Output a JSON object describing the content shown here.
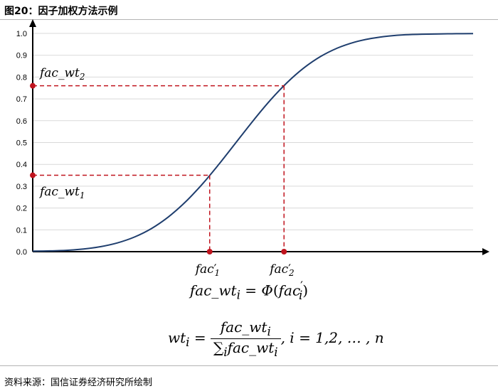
{
  "header": {
    "title": "图20：因子加权方法示例"
  },
  "footer": {
    "source": "资料来源：国信证券经济研究所绘制"
  },
  "colors": {
    "curve": "#1f3e6e",
    "marker": "#c0141e",
    "grid": "#d9d9d9",
    "axis": "#000000"
  },
  "chart_data": {
    "type": "line",
    "title": "",
    "xlabel": "",
    "ylabel": "",
    "ylim": [
      0,
      1.0
    ],
    "yticks": [
      "0.0",
      "0.1",
      "0.2",
      "0.3",
      "0.4",
      "0.5",
      "0.6",
      "0.7",
      "0.8",
      "0.9",
      "1.0"
    ],
    "grid": true,
    "series": [
      {
        "values": [
          0.0023,
          0.0035,
          0.0062,
          0.0122,
          0.0228,
          0.0401,
          0.0668,
          0.1056,
          0.1587,
          0.2266,
          0.3085,
          0.4013,
          0.5,
          0.5987,
          0.6915,
          0.7734,
          0.8413,
          0.8944,
          0.9332,
          0.9599,
          0.9772,
          0.9878,
          0.9938,
          0.9965,
          0.9977,
          0.9986,
          0.9992
        ]
      }
    ],
    "annotations": {
      "fac_wt_2_label": "fac_wt",
      "fac_wt_2_sub": "2",
      "fac_wt_2_value": 0.76,
      "fac_wt_1_label": "fac_wt",
      "fac_wt_1_sub": "1",
      "fac_wt_1_value": 0.35,
      "fac1_label": "fac",
      "fac1_sub": "1",
      "fac2_label": "fac",
      "fac2_sub": "2"
    }
  },
  "formulas": {
    "f1_lhs": "fac_wt",
    "f1_lhs_sub": "i",
    "f1_eq": " = ",
    "f1_phi": "Φ",
    "f1_open": "(",
    "f1_arg": "fac",
    "f1_arg_sub": "i",
    "f1_close": ")",
    "f2_lhs": "wt",
    "f2_lhs_sub": "i",
    "f2_eq": " = ",
    "f2_num": "fac_wt",
    "f2_num_sub": "i",
    "f2_den_sum": "∑",
    "f2_den_sum_sub": "i",
    "f2_den": "fac_wt",
    "f2_den_sub": "i",
    "f2_tail": ", i = 1,2, … , n"
  }
}
